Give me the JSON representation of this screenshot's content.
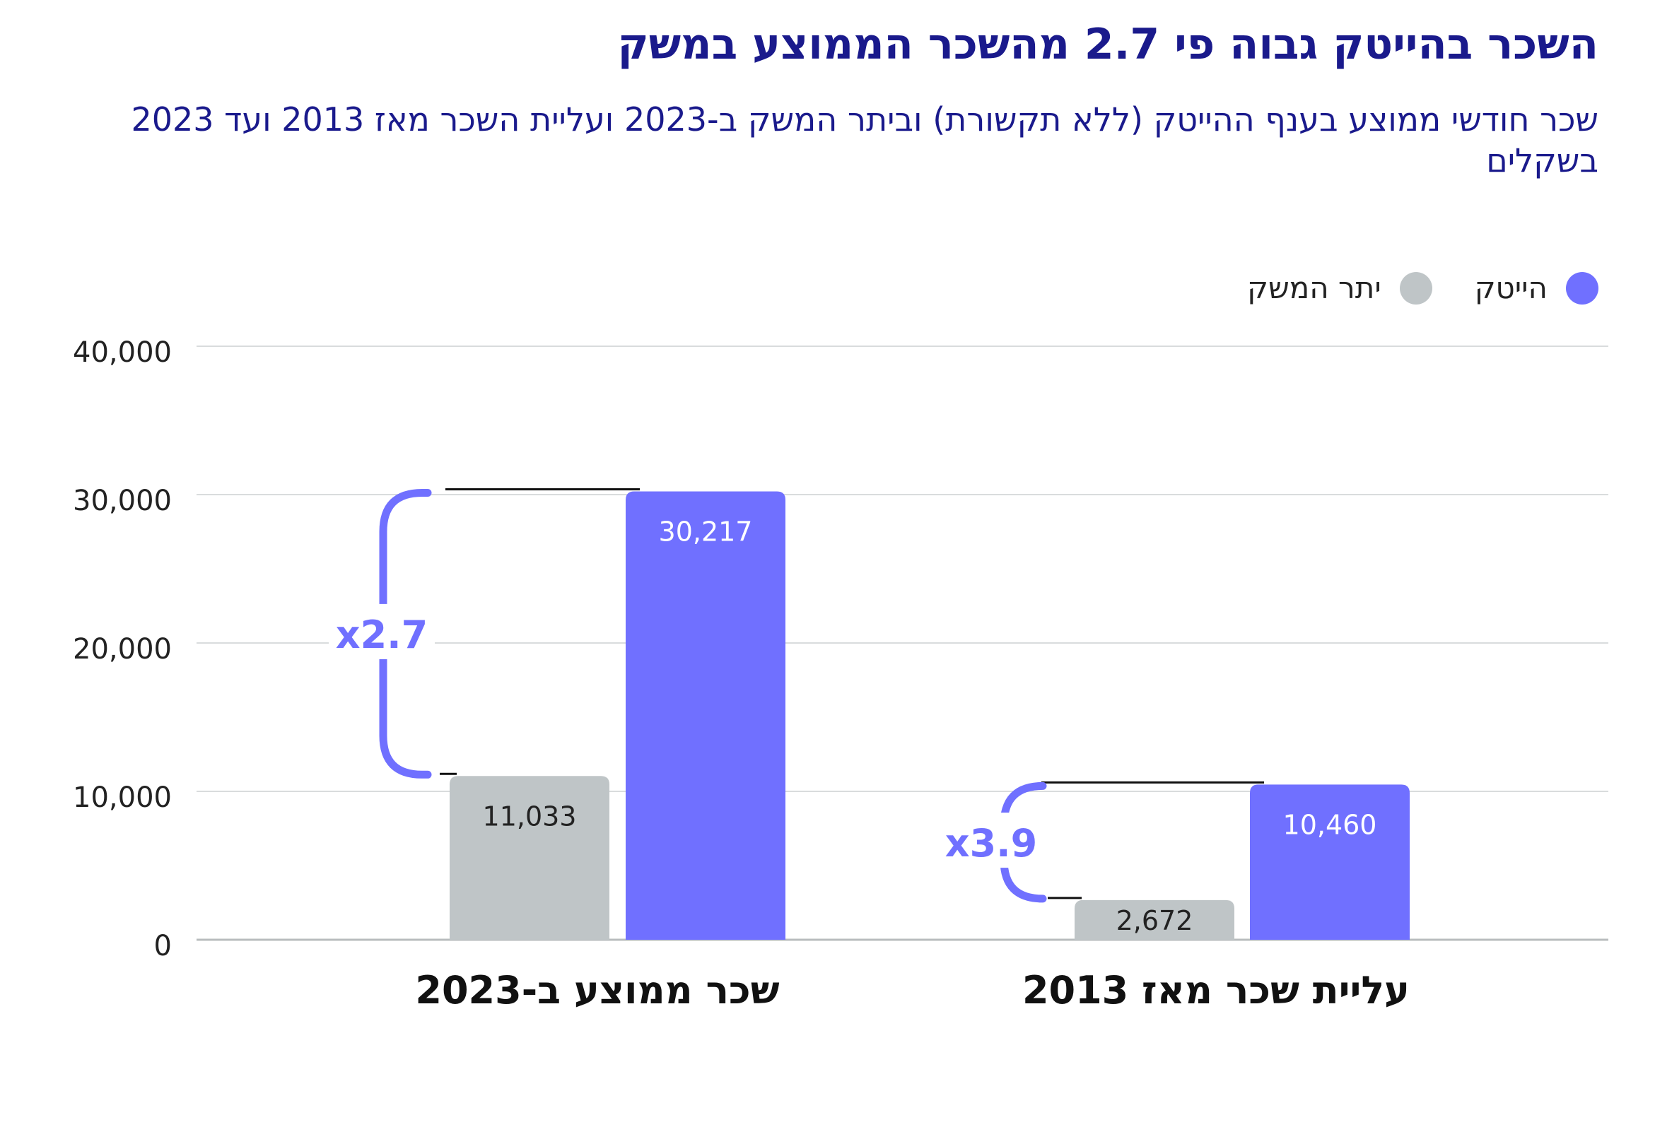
{
  "chart_data": {
    "type": "bar",
    "title": "השכר בהייטק גבוה פי 2.7 מהשכר הממוצע במשק",
    "subtitle": "שכר חודשי ממוצע בענף ההייטק (ללא תקשורת) וביתר המשק ב-2023 ועליית השכר מאז 2013 ועד 2023 בשקלים",
    "categories": [
      "שכר ממוצע ב-2023",
      "עליית שכר מאז 2013"
    ],
    "series": [
      {
        "name": "יתר המשק",
        "color": "#bfc5c7",
        "values": [
          11033,
          2672
        ],
        "value_labels": [
          "11,033",
          "2,672"
        ]
      },
      {
        "name": "הייטק",
        "color": "#7070ff",
        "values": [
          30217,
          10460
        ],
        "value_labels": [
          "30,217",
          "10,460"
        ]
      }
    ],
    "multipliers": [
      "x2.7",
      "x3.9"
    ],
    "ylim": [
      0,
      40000
    ],
    "yticks": [
      0,
      10000,
      20000,
      30000,
      40000
    ],
    "ytick_labels": [
      "0",
      "10,000",
      "20,000",
      "30,000",
      "40,000"
    ],
    "grid": true,
    "legend_position": "top-right"
  },
  "colors": {
    "title": "#1a1a8c",
    "accent": "#7070ff",
    "grey_bar": "#bfc5c7",
    "grid": "#d9dcdd"
  }
}
